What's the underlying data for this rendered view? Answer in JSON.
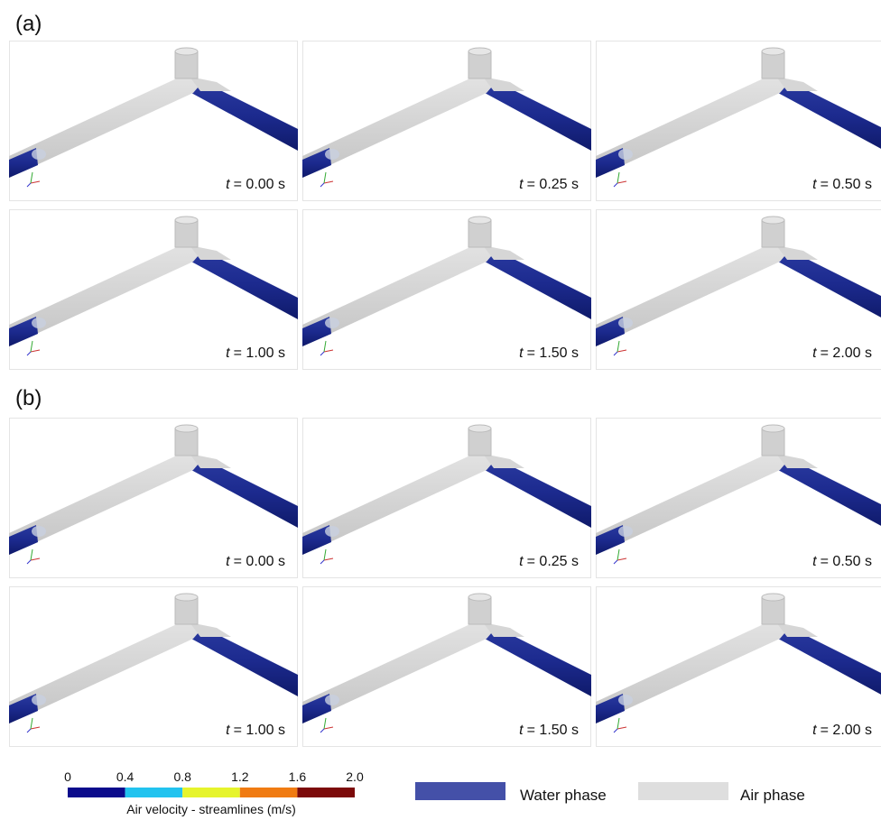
{
  "figure": {
    "panel_labels": [
      "(a)",
      "(b)"
    ],
    "time_variable": "t",
    "time_labels": [
      [
        "= 0.00 s",
        "= 0.25 s",
        "= 0.50 s",
        "= 1.00 s",
        "= 1.50 s",
        "= 2.00 s"
      ],
      [
        "= 0.00 s",
        "= 0.25 s",
        "= 0.50 s",
        "= 1.00 s",
        "= 1.50 s",
        "= 2.00 s"
      ]
    ],
    "colorbar": {
      "title": "Air velocity - streamlines (m/s)",
      "range": [
        0,
        2
      ],
      "ticks": [
        0,
        0.4,
        0.8,
        1.2,
        1.6,
        {
          "value": 2,
          "label": "2.0"
        }
      ],
      "colors": [
        "#0b0b8c",
        "#22c3ef",
        "#e6f42c",
        "#f07b12",
        "#7c0a0a"
      ]
    },
    "legend": [
      {
        "name": "Water phase",
        "color": "#4450a8"
      },
      {
        "name": "Air phase",
        "color": "#dedede"
      }
    ]
  }
}
